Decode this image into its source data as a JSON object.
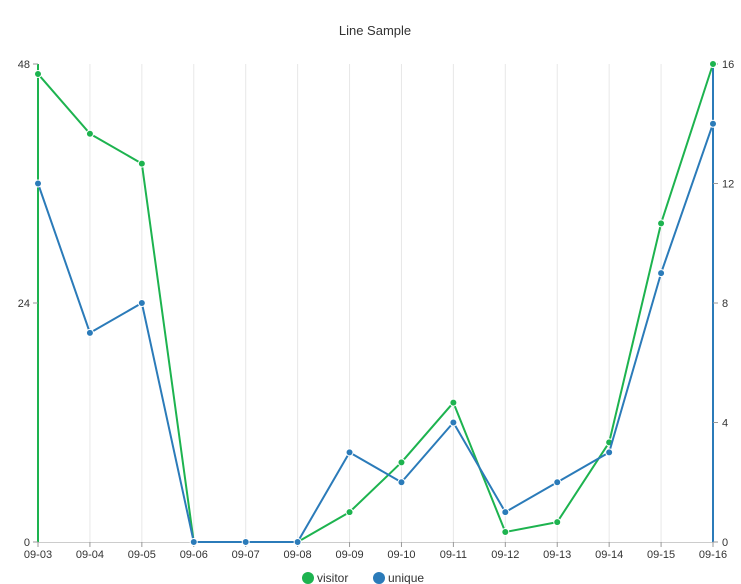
{
  "chart_data": {
    "type": "line",
    "title": "Line Sample",
    "categories": [
      "09-03",
      "09-04",
      "09-05",
      "09-06",
      "09-07",
      "09-08",
      "09-09",
      "09-10",
      "09-11",
      "09-12",
      "09-13",
      "09-14",
      "09-15",
      "09-16"
    ],
    "series": [
      {
        "name": "visitor",
        "axis": "left",
        "color": "#1db34f",
        "values": [
          47,
          41,
          38,
          0,
          0,
          0,
          3,
          8,
          14,
          1,
          2,
          10,
          32,
          48
        ]
      },
      {
        "name": "unique",
        "axis": "right",
        "color": "#2b7bb9",
        "values": [
          12,
          7,
          8,
          0,
          0,
          0,
          3,
          2,
          4,
          1,
          2,
          3,
          9,
          14
        ]
      }
    ],
    "y_left": {
      "min": 0,
      "max": 48,
      "ticks": [
        0,
        24,
        48
      ],
      "color": "#1db34f"
    },
    "y_right": {
      "min": 0,
      "max": 16,
      "ticks": [
        0,
        4,
        8,
        12,
        16
      ],
      "color": "#2b7bb9"
    },
    "grid": "vertical",
    "legend_position": "bottom-center"
  }
}
